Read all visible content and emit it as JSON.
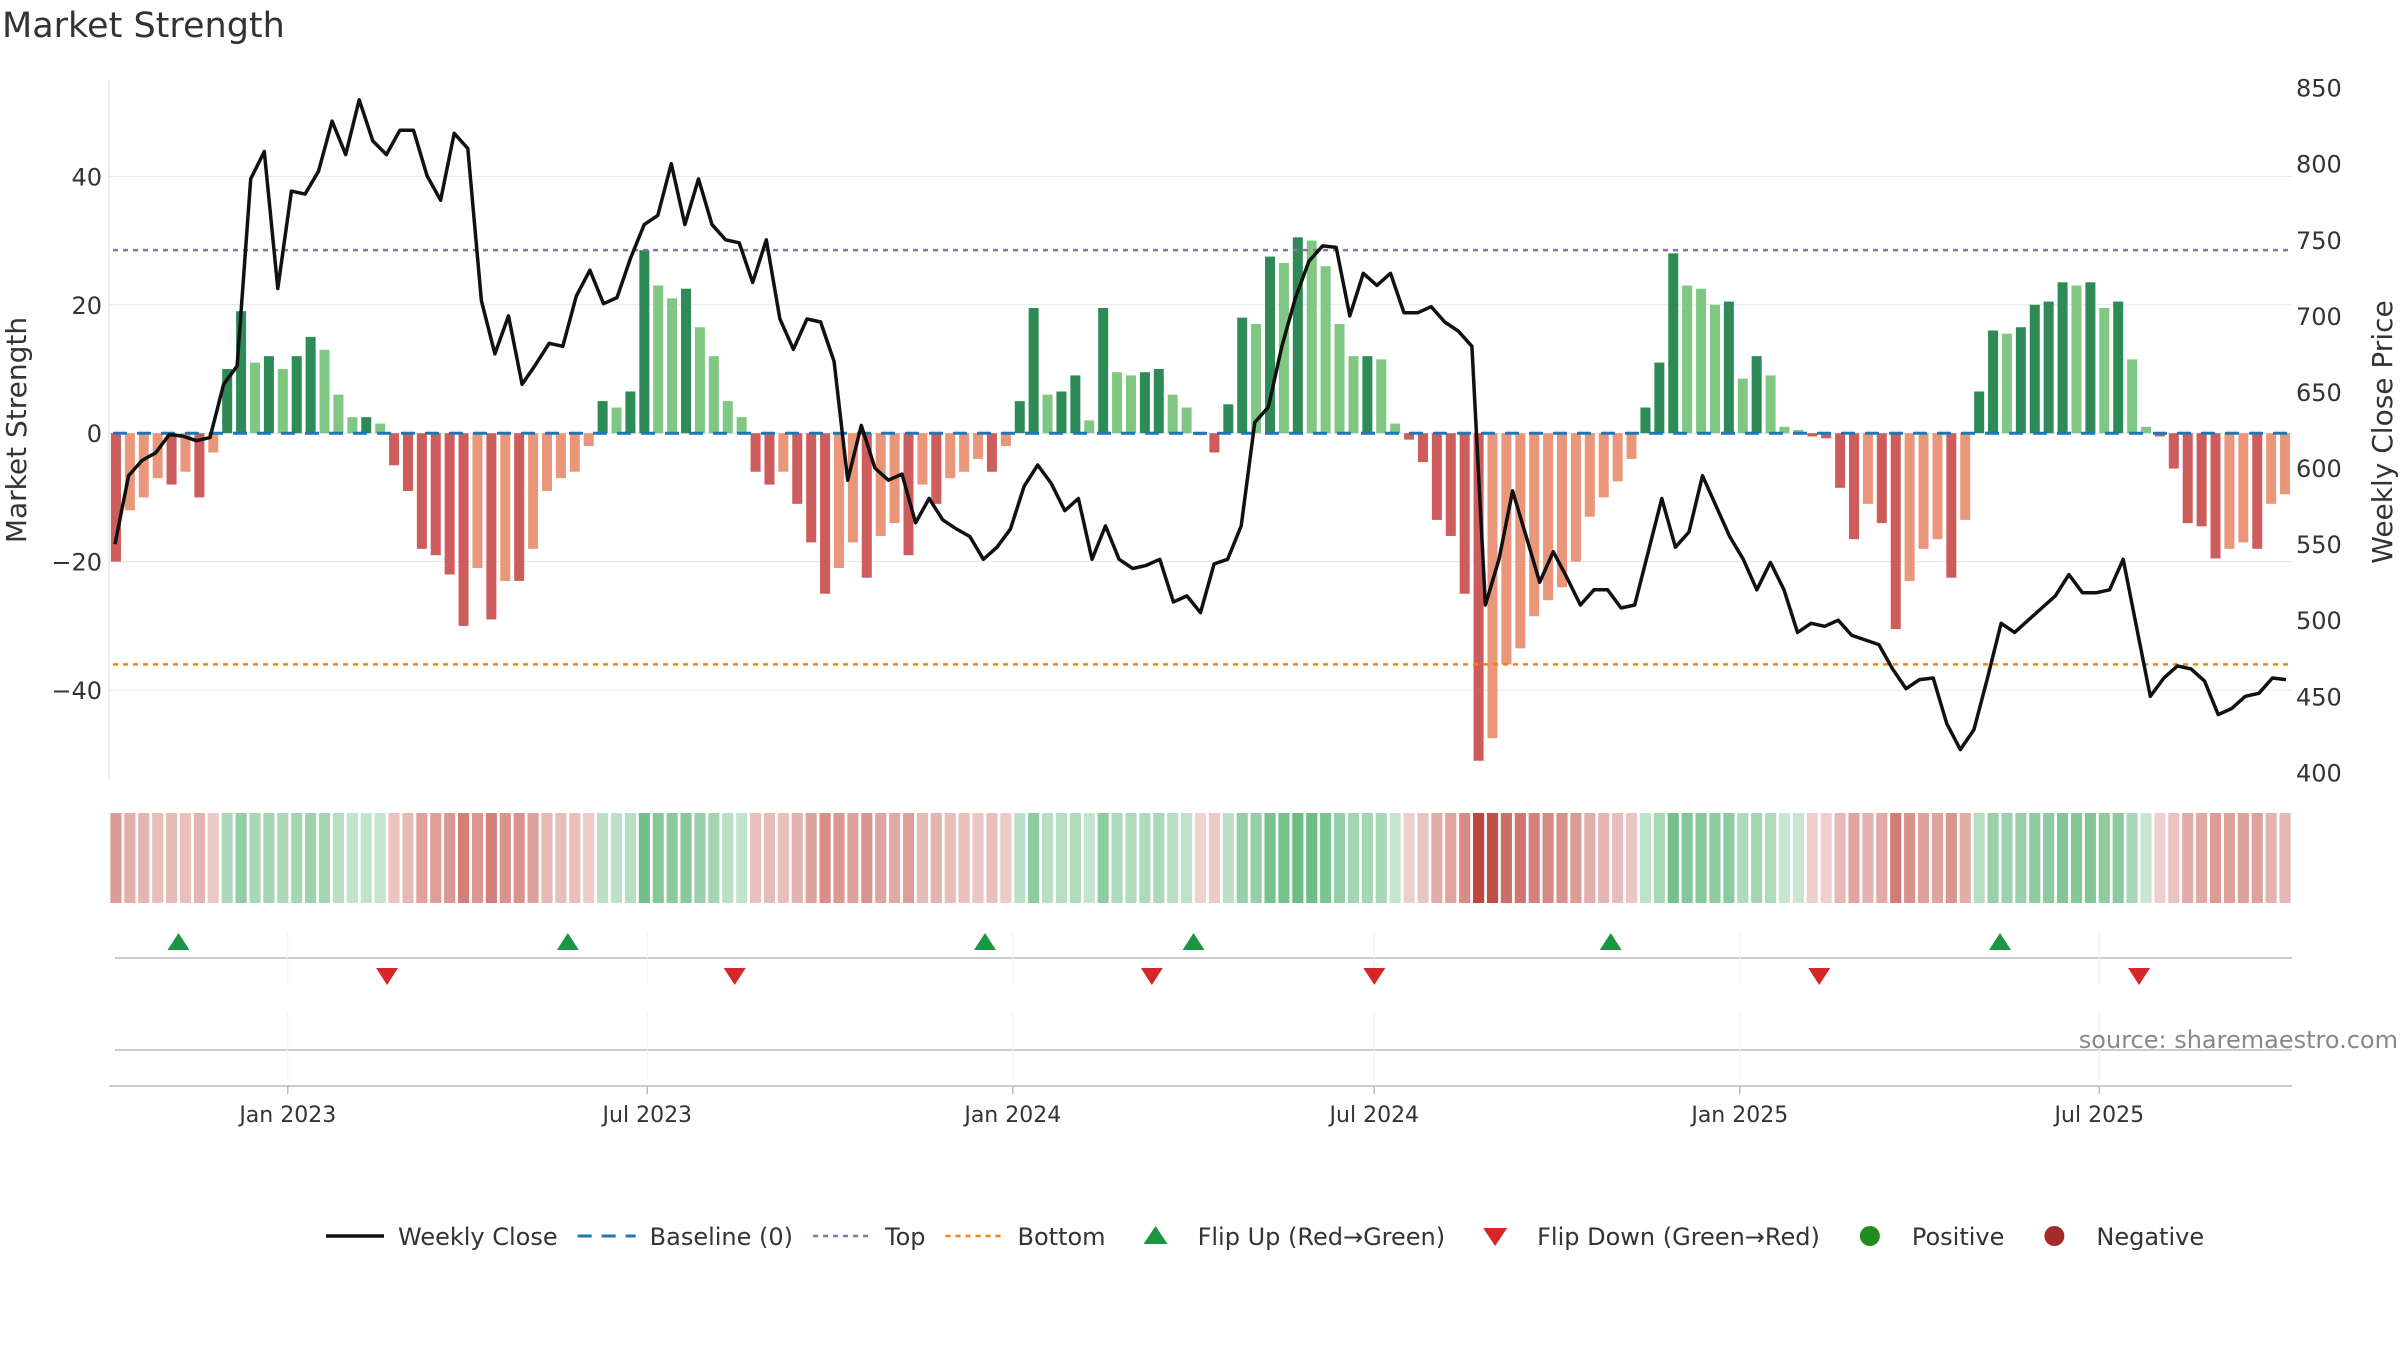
{
  "title": "Market Strength",
  "source": "source: sharemaestro.com",
  "colors": {
    "line": "#111111",
    "baseline": "#1f77b4",
    "top": "#9467bd",
    "bottom": "#ff7f0e",
    "pos_strong": "#2e8b57",
    "pos_weak": "#81c784",
    "neg_strong": "#cd5c5c",
    "neg_weak": "#e9967a",
    "flip_up": "#1a9641",
    "flip_down": "#d62728",
    "positive_dot": "#228b22",
    "negative_dot": "#a52a2a",
    "grid": "#e6e6e6",
    "text": "#333333"
  },
  "chart_data": {
    "type": "bar",
    "title": "Market Strength",
    "ylabel": "Market Strength",
    "y2label": "Weekly Close Price",
    "ylim": [
      -54,
      55
    ],
    "y2lim": [
      395,
      855
    ],
    "yticks": [
      -40,
      -20,
      0,
      20,
      40
    ],
    "y2ticks": [
      400,
      450,
      500,
      550,
      600,
      650,
      700,
      750,
      800,
      850
    ],
    "xticks": [
      "Jan 2023",
      "Jul 2023",
      "Jan 2024",
      "Jul 2024",
      "Jan 2025",
      "Jul 2025"
    ],
    "top": 28.5,
    "bottom": -36,
    "grid": true,
    "series": [
      {
        "name": "Market Strength",
        "values": [
          -20,
          -12,
          -10,
          -7,
          -8,
          -6,
          -10,
          -3,
          10,
          19,
          11,
          12,
          10,
          12,
          15,
          13,
          6,
          2.5,
          2.5,
          1.5,
          -5,
          -9,
          -18,
          -19,
          -22,
          -30,
          -21,
          -29,
          -23,
          -23,
          -18,
          -9,
          -7,
          -6,
          -2,
          5,
          4,
          6.5,
          28.5,
          23,
          21,
          22.5,
          16.5,
          12,
          5,
          2.5,
          -6,
          -8,
          -6,
          -11,
          -17,
          -25,
          -21,
          -17,
          -22.5,
          -16,
          -14,
          -19,
          -8,
          -11,
          -7,
          -6,
          -4,
          -6,
          -2,
          5,
          19.5,
          6,
          6.5,
          9,
          2,
          19.5,
          9.5,
          9,
          9.5,
          10,
          6,
          4,
          -0.3,
          -3,
          4.5,
          18,
          17,
          27.5,
          26.5,
          30.5,
          30,
          26,
          17,
          12,
          12,
          11.5,
          1.5,
          -1,
          -4.5,
          -13.5,
          -16,
          -25,
          -51,
          -47.5,
          -36,
          -33.5,
          -28.5,
          -26,
          -24,
          -20,
          -13,
          -10,
          -7.5,
          -4,
          4,
          11,
          28,
          23,
          22.5,
          20,
          20.5,
          8.5,
          12,
          9,
          1,
          0.5,
          -0.5,
          -0.8,
          -8.5,
          -16.5,
          -11,
          -14,
          -30.5,
          -23,
          -18,
          -16.5,
          -22.5,
          -13.5,
          6.5,
          16,
          15.5,
          16.5,
          20,
          20.5,
          23.5,
          23,
          23.5,
          19.5,
          20.5,
          11.5,
          1,
          -0.5,
          -5.5,
          -14,
          -14.5,
          -19.5,
          -18,
          -17,
          -18,
          -11,
          -9.5
        ]
      },
      {
        "name": "Weekly Close",
        "type": "line",
        "values": [
          550,
          595,
          605,
          610,
          622,
          621,
          618,
          620,
          655,
          667,
          790,
          808,
          718,
          782,
          780,
          795,
          828,
          806,
          842,
          815,
          806,
          822,
          822,
          792,
          776,
          820,
          810,
          710,
          675,
          700,
          655,
          668,
          682,
          680,
          713,
          730,
          708,
          712,
          738,
          760,
          766,
          800,
          760,
          790,
          760,
          750,
          748,
          722,
          750,
          698,
          678,
          698,
          696,
          670,
          592,
          628,
          600,
          592,
          596,
          564,
          580,
          566,
          560,
          555,
          540,
          548,
          560,
          588,
          602,
          590,
          572,
          580,
          540,
          562,
          540,
          534,
          536,
          540,
          512,
          516,
          505,
          537,
          540,
          562,
          630,
          640,
          680,
          712,
          736,
          746,
          745,
          700,
          728,
          720,
          728,
          702,
          702,
          706,
          696,
          690,
          680,
          510,
          540,
          585,
          555,
          525,
          545,
          528,
          510,
          520,
          520,
          508,
          510,
          545,
          580,
          548,
          558,
          595,
          575,
          555,
          540,
          520,
          538,
          520,
          492,
          498,
          496,
          500,
          490,
          487,
          484,
          468,
          455,
          461,
          462,
          432,
          415,
          428,
          462,
          498,
          492,
          500,
          508,
          516,
          530,
          518,
          518,
          520,
          540,
          495,
          450,
          462,
          470,
          468,
          460,
          438,
          442,
          450,
          452,
          462,
          461
        ]
      }
    ],
    "flip_up_dates": [
      "2022-11-07",
      "2023-05-22",
      "2023-12-18",
      "2024-04-01",
      "2024-10-28",
      "2025-05-12"
    ],
    "flip_down_dates": [
      "2023-02-20",
      "2023-08-14",
      "2024-03-11",
      "2024-07-01",
      "2025-02-10",
      "2025-07-21"
    ]
  },
  "legend": [
    {
      "label": "Weekly Close",
      "kind": "line"
    },
    {
      "label": "Baseline (0)",
      "kind": "dash"
    },
    {
      "label": "Top",
      "kind": "dot-purple"
    },
    {
      "label": "Bottom",
      "kind": "dot-orange"
    },
    {
      "label": "Flip Up (Red→Green)",
      "kind": "tri-up"
    },
    {
      "label": "Flip Down (Green→Red)",
      "kind": "tri-down"
    },
    {
      "label": "Positive",
      "kind": "dot-green"
    },
    {
      "label": "Negative",
      "kind": "dot-red"
    }
  ]
}
